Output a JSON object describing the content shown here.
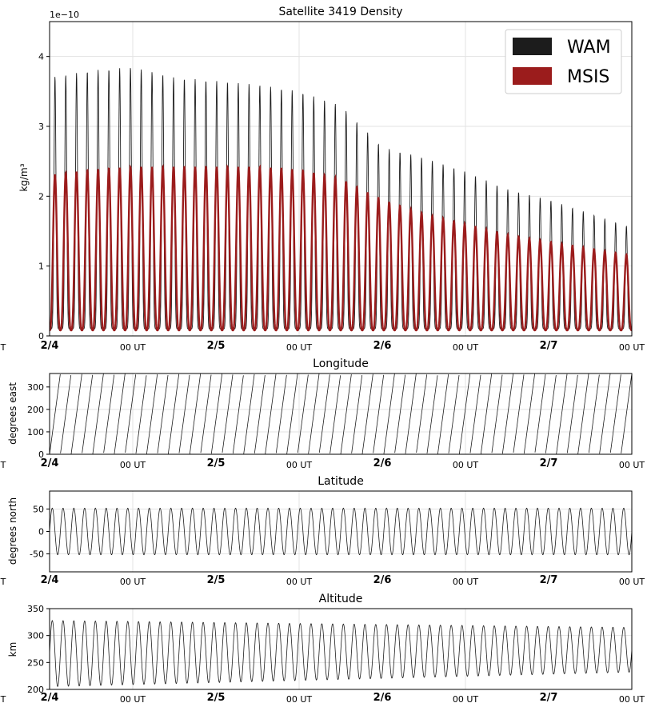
{
  "colors": {
    "wam": "#1c1c1c",
    "msis": "#9b1c1c",
    "grid": "#e3e3e3",
    "axis": "#000000"
  },
  "time_axis": {
    "day_labels": [
      "2/4",
      "2/5",
      "2/6",
      "2/7"
    ],
    "hour_labels": [
      "00 UT",
      "00 UT",
      "00 UT",
      "00 UT"
    ],
    "edge_label_left": "T",
    "unit": "days since 2/4",
    "day_positions": [
      0.0,
      1.0,
      2.0,
      3.0
    ],
    "hour_positions": [
      0.5,
      1.5,
      2.5,
      3.5
    ]
  },
  "chart_data": [
    {
      "type": "line",
      "title": "Satellite 3419 Density",
      "ylabel": "kg/m³",
      "exponent_label": "1e−10",
      "xlim": [
        0,
        3.5
      ],
      "ylim": [
        0,
        4.5
      ],
      "yticks": [
        0,
        1,
        2,
        3,
        4
      ],
      "grid": true,
      "legend": {
        "position": "top-right",
        "entries": [
          "WAM",
          "MSIS"
        ]
      },
      "orbit_cycles": 54,
      "series": [
        {
          "name": "WAM",
          "color": "#1c1c1c",
          "x": [
            0,
            0.25,
            0.5,
            0.75,
            1.0,
            1.25,
            1.5,
            1.75,
            2.0,
            2.25,
            2.5,
            2.75,
            3.0,
            3.25,
            3.5
          ],
          "peak_values": [
            3.7,
            3.8,
            3.85,
            3.7,
            3.65,
            3.6,
            3.5,
            3.3,
            2.7,
            2.55,
            2.35,
            2.1,
            1.95,
            1.75,
            1.55
          ],
          "trough_values": [
            0.1,
            0.1,
            0.1,
            0.1,
            0.1,
            0.1,
            0.1,
            0.1,
            0.1,
            0.1,
            0.1,
            0.1,
            0.1,
            0.1,
            0.1
          ]
        },
        {
          "name": "MSIS",
          "color": "#9b1c1c",
          "x": [
            0,
            0.25,
            0.5,
            0.75,
            1.0,
            1.25,
            1.5,
            1.75,
            2.0,
            2.25,
            2.5,
            2.75,
            3.0,
            3.25,
            3.5
          ],
          "peak_values": [
            2.3,
            2.38,
            2.42,
            2.42,
            2.42,
            2.42,
            2.38,
            2.25,
            1.95,
            1.75,
            1.6,
            1.45,
            1.35,
            1.25,
            1.15
          ],
          "trough_values": [
            0.08,
            0.08,
            0.08,
            0.08,
            0.08,
            0.08,
            0.08,
            0.08,
            0.08,
            0.08,
            0.08,
            0.08,
            0.08,
            0.08,
            0.08
          ]
        }
      ]
    },
    {
      "type": "line",
      "title": "Longitude",
      "ylabel": "degrees east",
      "xlim": [
        0,
        3.5
      ],
      "ylim": [
        0,
        360
      ],
      "yticks": [
        0,
        100,
        200,
        300
      ],
      "grid": true,
      "cycles": 54,
      "series": [
        {
          "name": "",
          "color": "#1c1c1c",
          "pattern": "sawtooth",
          "min": 0,
          "max": 360
        }
      ]
    },
    {
      "type": "line",
      "title": "Latitude",
      "ylabel": "degrees north",
      "xlim": [
        0,
        3.5
      ],
      "ylim": [
        -90,
        90
      ],
      "yticks": [
        -50,
        0,
        50
      ],
      "grid": true,
      "cycles": 54,
      "series": [
        {
          "name": "",
          "color": "#1c1c1c",
          "pattern": "sine",
          "amplitude": 52,
          "offset": 0
        }
      ]
    },
    {
      "type": "line",
      "title": "Altitude",
      "ylabel": "km",
      "xlim": [
        0,
        3.5
      ],
      "ylim": [
        200,
        350
      ],
      "yticks": [
        200,
        250,
        300,
        350
      ],
      "grid": true,
      "cycles": 54,
      "series": [
        {
          "name": "",
          "color": "#1c1c1c",
          "pattern": "sine",
          "max_start": 328,
          "min_start": 205,
          "max_end": 315,
          "min_end": 232
        }
      ]
    }
  ]
}
